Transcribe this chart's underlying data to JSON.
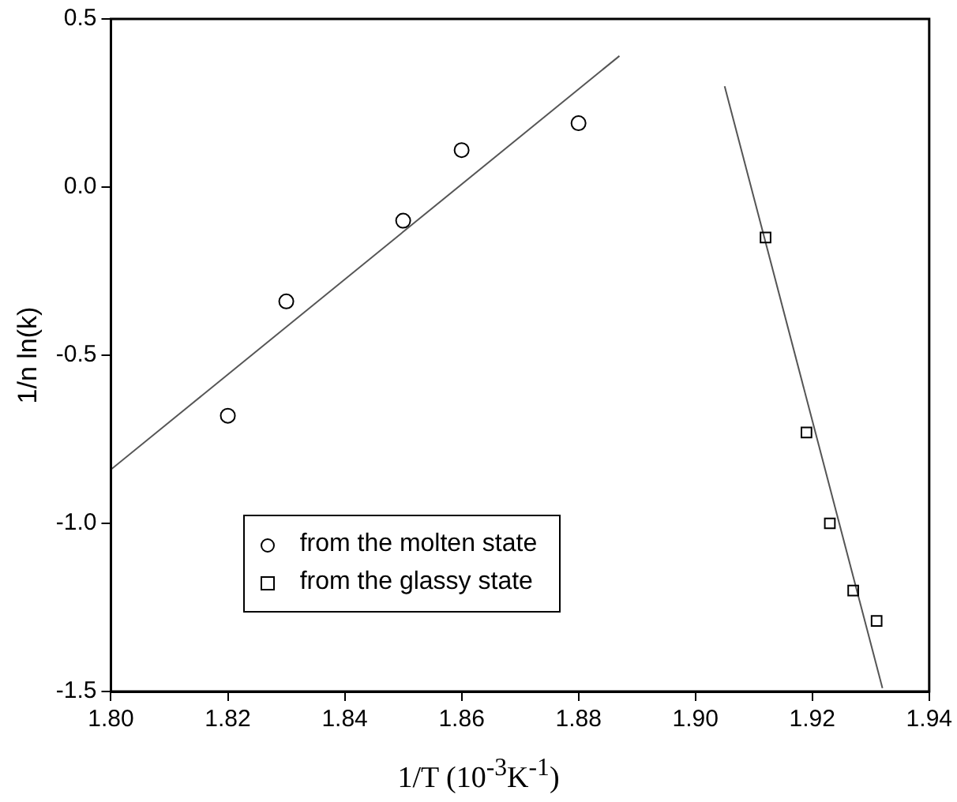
{
  "chart_data": {
    "type": "scatter",
    "xlabel": "1/T (10$^{-3}$K$^{-1}$)",
    "ylabel": "1/n ln(k)",
    "xlim": [
      1.8,
      1.94
    ],
    "xticks": [
      {
        "value": 1.8,
        "label": "1.80"
      },
      1.82,
      1.84,
      1.86,
      1.88,
      {
        "value": 1.9,
        "label": "1.90"
      },
      1.92,
      1.94
    ],
    "ylim": [
      -1.5,
      0.5
    ],
    "yticks": [
      -1.5,
      {
        "value": -1,
        "label": "-1.0"
      },
      -0.5,
      {
        "value": 0,
        "label": "0.0"
      },
      0.5
    ],
    "grid": false,
    "legend": "bottom",
    "series": [
      {
        "name": "from the molten state",
        "marker": "circle",
        "color": "#000000",
        "x": [
          1.82,
          1.83,
          1.85,
          1.86,
          1.88
        ],
        "values": [
          -0.68,
          -0.34,
          -0.1,
          0.11,
          0.19
        ]
      },
      {
        "name": "from the glassy state",
        "marker": "square",
        "color": "#000000",
        "x": [
          1.912,
          1.919,
          1.923,
          1.927,
          1.931
        ],
        "values": [
          -0.15,
          -0.73,
          -1.0,
          -1.2,
          -1.29
        ]
      },
      {
        "type": "line",
        "marker": "none",
        "color": "#555555",
        "x": [
          1.8,
          1.887
        ],
        "values": [
          -0.84,
          0.39
        ]
      },
      {
        "type": "line",
        "marker": "none",
        "color": "#555555",
        "x": [
          1.905,
          1.932
        ],
        "values": [
          0.3,
          -1.49
        ]
      }
    ]
  }
}
